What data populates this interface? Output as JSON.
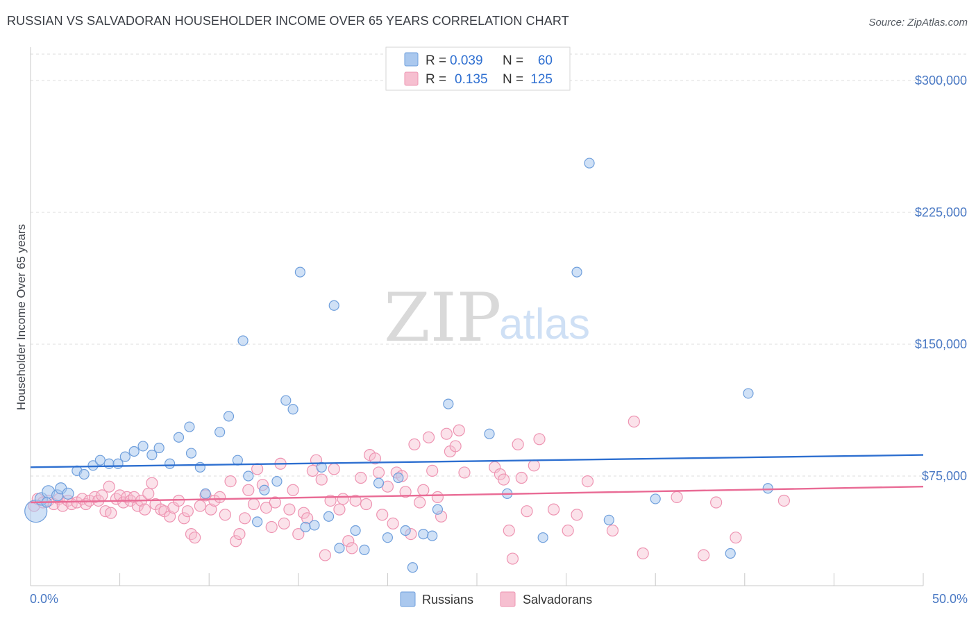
{
  "title": "RUSSIAN VS SALVADORAN HOUSEHOLDER INCOME OVER 65 YEARS CORRELATION CHART",
  "source": "Source: ZipAtlas.com",
  "watermark": {
    "zip": "ZIP",
    "atlas": "atlas"
  },
  "colors": {
    "russians_fill": "#aac8ee",
    "russians_stroke": "#6f9fdc",
    "russians_line": "#2d6fd0",
    "salvadorans_fill": "#f6bfd0",
    "salvadorans_stroke": "#ee94b2",
    "salvadorans_line": "#e96b95",
    "tick_text": "#4a79c4",
    "grid": "#dcdcdc"
  },
  "legend": {
    "rows": [
      {
        "r_label": "R =",
        "r_value": "0.039",
        "n_label": "N =",
        "n_value": "60"
      },
      {
        "r_label": "R =",
        "r_value": "0.135",
        "n_label": "N =",
        "n_value": "125"
      }
    ]
  },
  "bottom_legend": [
    "Russians",
    "Salvadorans"
  ],
  "chart_data": {
    "type": "scatter",
    "title": "RUSSIAN VS SALVADORAN HOUSEHOLDER INCOME OVER 65 YEARS CORRELATION CHART",
    "xlabel": "",
    "ylabel": "Householder Income Over 65 years",
    "xlim": [
      0,
      50
    ],
    "ylim": [
      15000,
      315000
    ],
    "x_tick_labels": [
      "0.0%",
      "50.0%"
    ],
    "y_ticks": [
      75000,
      150000,
      225000,
      300000
    ],
    "y_tick_labels": [
      "$75,000",
      "$150,000",
      "$225,000",
      "$300,000"
    ],
    "grid": true,
    "legend_position": "top-center",
    "series": [
      {
        "name": "Russians",
        "r": 0.039,
        "n": 60,
        "trend": {
          "x": [
            0,
            50
          ],
          "y": [
            80000,
            87000
          ]
        },
        "points": [
          [
            0.3,
            55000,
            16
          ],
          [
            0.6,
            62000,
            9
          ],
          [
            1.0,
            66000,
            9
          ],
          [
            1.5,
            64000,
            8
          ],
          [
            0.9,
            60000,
            7
          ],
          [
            1.7,
            68000,
            8
          ],
          [
            2.1,
            65000,
            8
          ],
          [
            2.6,
            78000,
            7
          ],
          [
            3.0,
            76000,
            7
          ],
          [
            3.5,
            81000,
            7
          ],
          [
            3.9,
            84000,
            7
          ],
          [
            4.4,
            82000,
            7
          ],
          [
            4.9,
            82000,
            7
          ],
          [
            5.3,
            86000,
            7
          ],
          [
            5.8,
            89000,
            7
          ],
          [
            6.3,
            92000,
            7
          ],
          [
            6.8,
            87000,
            7
          ],
          [
            7.2,
            91000,
            7
          ],
          [
            7.8,
            82000,
            7
          ],
          [
            8.3,
            97000,
            7
          ],
          [
            8.9,
            103000,
            7
          ],
          [
            9.0,
            88000,
            7
          ],
          [
            9.5,
            80000,
            7
          ],
          [
            9.8,
            65000,
            7
          ],
          [
            10.6,
            100000,
            7
          ],
          [
            11.1,
            109000,
            7
          ],
          [
            11.6,
            84000,
            7
          ],
          [
            11.9,
            152000,
            7
          ],
          [
            12.2,
            75000,
            7
          ],
          [
            12.7,
            49000,
            7
          ],
          [
            13.1,
            67000,
            7
          ],
          [
            13.8,
            72000,
            7
          ],
          [
            14.3,
            118000,
            7
          ],
          [
            14.7,
            113000,
            7
          ],
          [
            15.1,
            191000,
            7
          ],
          [
            15.4,
            46000,
            7
          ],
          [
            15.9,
            47000,
            7
          ],
          [
            16.3,
            80000,
            7
          ],
          [
            16.7,
            52000,
            7
          ],
          [
            17.0,
            172000,
            7
          ],
          [
            17.3,
            34000,
            7
          ],
          [
            18.2,
            44000,
            7
          ],
          [
            18.7,
            33000,
            7
          ],
          [
            19.5,
            71000,
            7
          ],
          [
            20.0,
            40000,
            7
          ],
          [
            20.6,
            74000,
            7
          ],
          [
            21.0,
            44000,
            7
          ],
          [
            21.4,
            23000,
            7
          ],
          [
            22.0,
            42000,
            7
          ],
          [
            22.5,
            41000,
            7
          ],
          [
            22.8,
            56000,
            7
          ],
          [
            23.4,
            116000,
            7
          ],
          [
            25.7,
            99000,
            7
          ],
          [
            26.7,
            65000,
            7
          ],
          [
            28.7,
            40000,
            7
          ],
          [
            30.6,
            191000,
            7
          ],
          [
            31.3,
            253000,
            7
          ],
          [
            32.4,
            50000,
            7
          ],
          [
            35.0,
            62000,
            7
          ],
          [
            39.2,
            31000,
            7
          ],
          [
            40.2,
            122000,
            7
          ],
          [
            41.3,
            68000,
            7
          ]
        ]
      },
      {
        "name": "Salvadorans",
        "r": 0.135,
        "n": 125,
        "trend": {
          "x": [
            0,
            50
          ],
          "y": [
            60000,
            69000
          ]
        },
        "points": [
          [
            0.2,
            58000,
            8
          ],
          [
            0.4,
            62000,
            8
          ],
          [
            0.7,
            60000,
            8
          ],
          [
            1.0,
            61000,
            8
          ],
          [
            1.3,
            59000,
            8
          ],
          [
            1.6,
            62000,
            8
          ],
          [
            1.8,
            58000,
            8
          ],
          [
            2.1,
            61000,
            8
          ],
          [
            2.3,
            59000,
            8
          ],
          [
            2.6,
            60000,
            8
          ],
          [
            2.9,
            62000,
            8
          ],
          [
            3.1,
            59000,
            8
          ],
          [
            3.3,
            61000,
            8
          ],
          [
            3.6,
            63000,
            8
          ],
          [
            3.8,
            61000,
            8
          ],
          [
            4.0,
            64000,
            8
          ],
          [
            4.2,
            55000,
            8
          ],
          [
            4.4,
            69000,
            8
          ],
          [
            4.5,
            54000,
            8
          ],
          [
            4.8,
            62000,
            8
          ],
          [
            5.0,
            64000,
            8
          ],
          [
            5.2,
            60000,
            8
          ],
          [
            5.4,
            63000,
            8
          ],
          [
            5.6,
            61000,
            8
          ],
          [
            5.8,
            63000,
            8
          ],
          [
            6.0,
            58000,
            8
          ],
          [
            6.2,
            61000,
            8
          ],
          [
            6.4,
            56000,
            8
          ],
          [
            6.6,
            65000,
            8
          ],
          [
            6.8,
            71000,
            8
          ],
          [
            7.0,
            59000,
            8
          ],
          [
            7.3,
            56000,
            8
          ],
          [
            7.5,
            55000,
            8
          ],
          [
            7.8,
            52000,
            8
          ],
          [
            8.0,
            57000,
            8
          ],
          [
            8.3,
            61000,
            8
          ],
          [
            8.6,
            51000,
            8
          ],
          [
            8.8,
            55000,
            8
          ],
          [
            9.0,
            42000,
            8
          ],
          [
            9.2,
            40000,
            8
          ],
          [
            9.5,
            58000,
            8
          ],
          [
            9.8,
            64000,
            8
          ],
          [
            10.1,
            56000,
            8
          ],
          [
            10.3,
            61000,
            8
          ],
          [
            10.6,
            63000,
            8
          ],
          [
            10.9,
            53000,
            8
          ],
          [
            11.2,
            72000,
            8
          ],
          [
            11.5,
            38000,
            8
          ],
          [
            11.7,
            42000,
            8
          ],
          [
            12.0,
            51000,
            8
          ],
          [
            12.2,
            67000,
            8
          ],
          [
            12.5,
            59000,
            8
          ],
          [
            12.7,
            79000,
            8
          ],
          [
            13.0,
            70000,
            8
          ],
          [
            13.2,
            57000,
            8
          ],
          [
            13.5,
            46000,
            8
          ],
          [
            13.7,
            60000,
            8
          ],
          [
            14.0,
            82000,
            8
          ],
          [
            14.2,
            48000,
            8
          ],
          [
            14.5,
            56000,
            8
          ],
          [
            14.7,
            67000,
            8
          ],
          [
            15.0,
            42000,
            8
          ],
          [
            15.3,
            54000,
            8
          ],
          [
            15.5,
            51000,
            8
          ],
          [
            15.8,
            78000,
            8
          ],
          [
            16.0,
            84000,
            8
          ],
          [
            16.3,
            73000,
            8
          ],
          [
            16.5,
            30000,
            8
          ],
          [
            16.8,
            61000,
            8
          ],
          [
            17.0,
            79000,
            8
          ],
          [
            17.3,
            56000,
            8
          ],
          [
            17.5,
            62000,
            8
          ],
          [
            17.8,
            38000,
            8
          ],
          [
            18.0,
            34000,
            8
          ],
          [
            18.2,
            61000,
            8
          ],
          [
            18.5,
            74000,
            8
          ],
          [
            18.8,
            59000,
            8
          ],
          [
            19.0,
            87000,
            8
          ],
          [
            19.3,
            85000,
            8
          ],
          [
            19.5,
            77000,
            8
          ],
          [
            19.7,
            53000,
            8
          ],
          [
            20.0,
            69000,
            8
          ],
          [
            20.3,
            48000,
            8
          ],
          [
            20.5,
            77000,
            8
          ],
          [
            20.8,
            75000,
            8
          ],
          [
            21.0,
            66000,
            8
          ],
          [
            21.3,
            42000,
            8
          ],
          [
            21.5,
            93000,
            8
          ],
          [
            21.8,
            60000,
            8
          ],
          [
            22.0,
            67000,
            8
          ],
          [
            22.3,
            97000,
            8
          ],
          [
            22.5,
            78000,
            8
          ],
          [
            22.8,
            63000,
            8
          ],
          [
            23.0,
            52000,
            8
          ],
          [
            23.3,
            99000,
            8
          ],
          [
            23.5,
            89000,
            8
          ],
          [
            23.8,
            92000,
            8
          ],
          [
            24.0,
            101000,
            8
          ],
          [
            24.3,
            77000,
            8
          ],
          [
            26.0,
            80000,
            8
          ],
          [
            26.3,
            76000,
            8
          ],
          [
            26.5,
            73000,
            8
          ],
          [
            26.8,
            44000,
            8
          ],
          [
            27.0,
            28000,
            8
          ],
          [
            27.3,
            93000,
            8
          ],
          [
            27.5,
            74000,
            8
          ],
          [
            27.8,
            55000,
            8
          ],
          [
            28.2,
            81000,
            8
          ],
          [
            28.5,
            96000,
            8
          ],
          [
            29.3,
            56000,
            8
          ],
          [
            30.1,
            44000,
            8
          ],
          [
            30.6,
            53000,
            8
          ],
          [
            31.2,
            72000,
            8
          ],
          [
            32.6,
            44000,
            8
          ],
          [
            33.8,
            106000,
            8
          ],
          [
            34.3,
            31000,
            8
          ],
          [
            36.2,
            63000,
            8
          ],
          [
            37.7,
            30000,
            8
          ],
          [
            38.4,
            60000,
            8
          ],
          [
            39.5,
            40000,
            8
          ],
          [
            42.2,
            61000,
            8
          ]
        ]
      }
    ]
  }
}
